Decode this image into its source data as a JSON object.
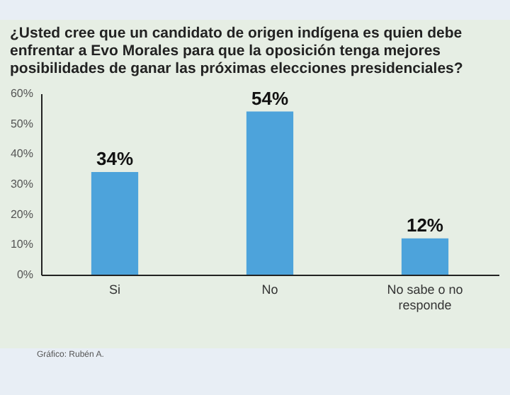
{
  "chart_data": {
    "type": "bar",
    "title": "¿Usted cree que un candidato de origen indígena es quien debe enfrentar a Evo Morales para que la oposición tenga mejores posibilidades de ganar las próximas elecciones presidenciales?",
    "categories": [
      "Si",
      "No",
      "No sabe o no responde"
    ],
    "values": [
      34,
      54,
      12
    ],
    "value_labels": [
      "34%",
      "54%",
      "12%"
    ],
    "color": "#4da3db",
    "ylim": [
      0,
      60
    ],
    "yticks": [
      {
        "value": 0,
        "label": "0%"
      },
      {
        "value": 10,
        "label": "10%"
      },
      {
        "value": 20,
        "label": "20%"
      },
      {
        "value": 30,
        "label": "30%"
      },
      {
        "value": 40,
        "label": "40%"
      },
      {
        "value": 50,
        "label": "50%"
      },
      {
        "value": 60,
        "label": "60%"
      }
    ],
    "grid": false,
    "annotations": [
      "Gráfico: Rubén A."
    ]
  }
}
